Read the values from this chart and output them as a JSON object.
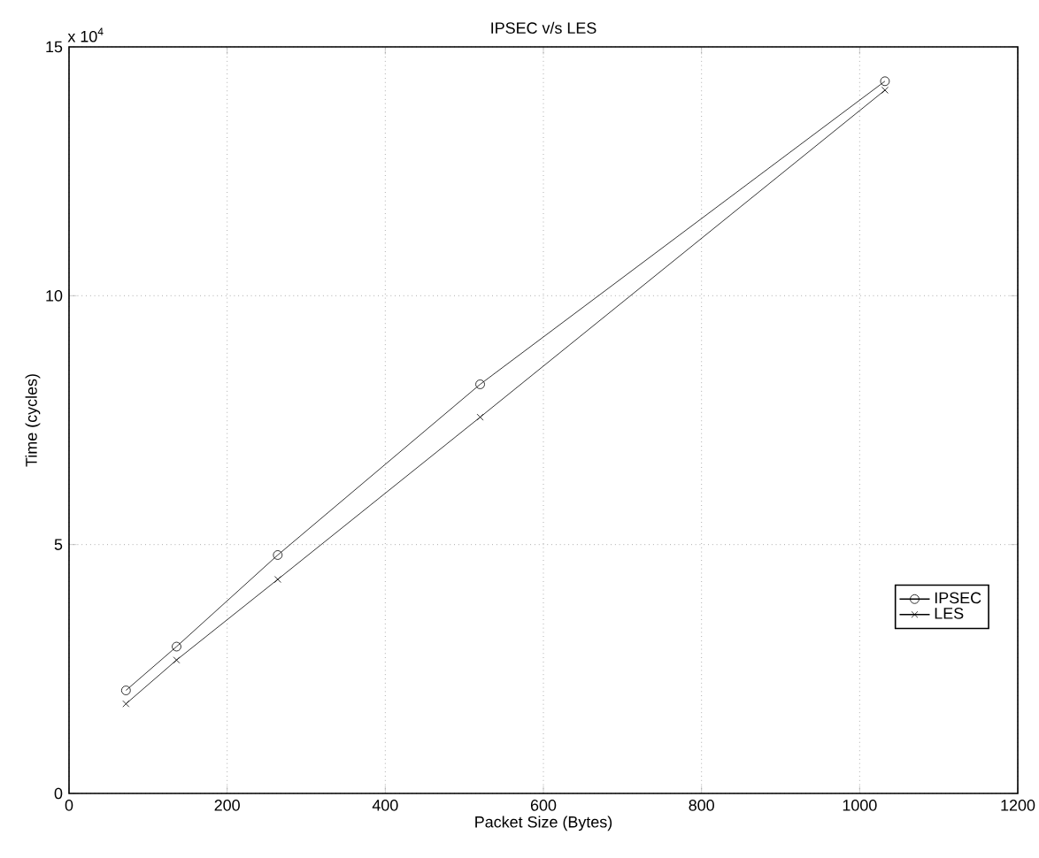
{
  "chart_data": {
    "type": "line",
    "title": "IPSEC v/s LES",
    "xlabel": "Packet Size (Bytes)",
    "ylabel": "Time (cycles)",
    "annotations": [
      "x 10$^{4}$"
    ],
    "x": [
      72,
      136,
      264,
      520,
      1032
    ],
    "series": [
      {
        "name": "IPSEC",
        "color": "#000000",
        "marker": "circle",
        "values": [
          2.07,
          2.95,
          4.79,
          8.22,
          14.31
        ]
      },
      {
        "name": "LES",
        "color": "#000000",
        "marker": "cross",
        "values": [
          1.8,
          2.68,
          4.3,
          7.56,
          14.13
        ]
      }
    ],
    "xlim": [
      0,
      1200
    ],
    "ylim": [
      0,
      15
    ],
    "xticks": [
      0,
      200,
      400,
      600,
      800,
      1000,
      1200
    ],
    "yticks": [
      0,
      5,
      10,
      15
    ],
    "grid": true,
    "legend": "bottom right",
    "line_style": "solid"
  }
}
